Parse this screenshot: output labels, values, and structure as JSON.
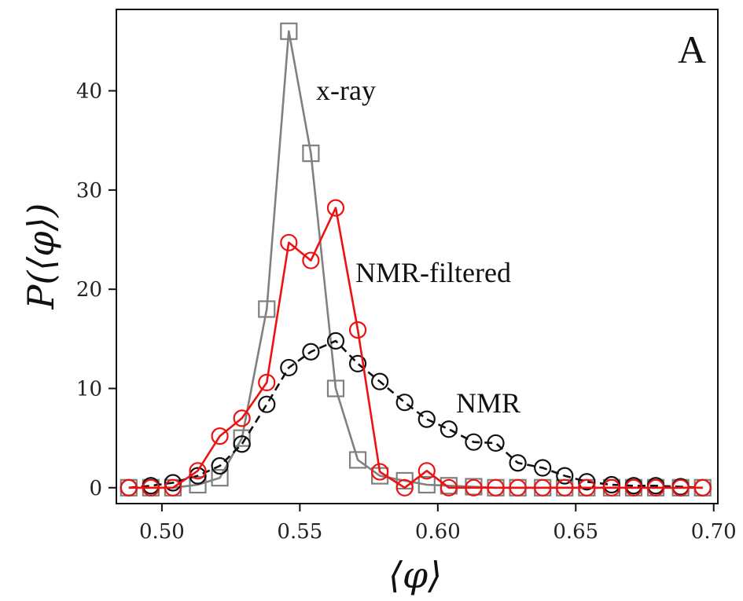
{
  "chart_data": {
    "type": "line",
    "panel_label": "A",
    "xlabel": "⟨φ⟩",
    "ylabel": "P(⟨φ⟩)",
    "xlim": [
      0.4835,
      0.7015
    ],
    "ylim": [
      -1.6,
      48.2
    ],
    "xticks": [
      0.5,
      0.55,
      0.6,
      0.65,
      0.7
    ],
    "xtick_labels": [
      "0.50",
      "0.55",
      "0.60",
      "0.65",
      "0.70"
    ],
    "yticks": [
      0,
      10,
      20,
      30,
      40
    ],
    "ytick_labels": [
      "0",
      "10",
      "20",
      "30",
      "40"
    ],
    "grid": false,
    "legend": "none",
    "series": [
      {
        "name": "x-ray",
        "color": "#808080",
        "marker": "square",
        "linestyle": "solid",
        "x": [
          0.488,
          0.496,
          0.504,
          0.513,
          0.521,
          0.529,
          0.538,
          0.546,
          0.554,
          0.563,
          0.571,
          0.579,
          0.588,
          0.596,
          0.604,
          0.613,
          0.621,
          0.629,
          0.638,
          0.646,
          0.654,
          0.663,
          0.671,
          0.679,
          0.688,
          0.696
        ],
        "values": [
          0.0,
          0.0,
          0.0,
          0.3,
          1.0,
          5.0,
          18.0,
          46.0,
          33.7,
          10.0,
          2.8,
          1.2,
          0.7,
          0.3,
          0.2,
          0.1,
          0.0,
          0.0,
          0.0,
          0.0,
          0.0,
          0.0,
          0.0,
          0.0,
          0.0,
          0.0
        ]
      },
      {
        "name": "NMR-filtered",
        "color": "#ee1111",
        "marker": "circle",
        "linestyle": "solid",
        "x": [
          0.488,
          0.496,
          0.504,
          0.513,
          0.521,
          0.529,
          0.538,
          0.546,
          0.554,
          0.563,
          0.571,
          0.579,
          0.588,
          0.596,
          0.604,
          0.613,
          0.621,
          0.629,
          0.638,
          0.646,
          0.654,
          0.663,
          0.671,
          0.679,
          0.688,
          0.696
        ],
        "values": [
          0.0,
          0.0,
          0.0,
          1.7,
          5.2,
          7.0,
          10.6,
          24.7,
          22.9,
          28.2,
          15.9,
          1.6,
          0.0,
          1.7,
          0.0,
          0.0,
          0.0,
          0.0,
          0.0,
          0.0,
          0.0,
          0.0,
          0.0,
          0.0,
          0.0,
          0.0
        ]
      },
      {
        "name": "NMR",
        "color": "#111111",
        "marker": "circle",
        "linestyle": "dashed",
        "x": [
          0.488,
          0.496,
          0.504,
          0.513,
          0.521,
          0.529,
          0.538,
          0.546,
          0.554,
          0.563,
          0.571,
          0.579,
          0.588,
          0.596,
          0.604,
          0.613,
          0.621,
          0.629,
          0.638,
          0.646,
          0.654,
          0.663,
          0.671,
          0.679,
          0.688,
          0.696
        ],
        "values": [
          0.0,
          0.2,
          0.5,
          1.2,
          2.2,
          4.4,
          8.4,
          12.1,
          13.7,
          14.8,
          12.5,
          10.7,
          8.6,
          6.9,
          5.9,
          4.6,
          4.5,
          2.5,
          2.0,
          1.2,
          0.6,
          0.3,
          0.2,
          0.2,
          0.1,
          0.0
        ]
      }
    ],
    "annotations": [
      {
        "text": "x-ray",
        "series": "x-ray"
      },
      {
        "text": "NMR-filtered",
        "series": "NMR-filtered"
      },
      {
        "text": "NMR",
        "series": "NMR"
      }
    ]
  }
}
